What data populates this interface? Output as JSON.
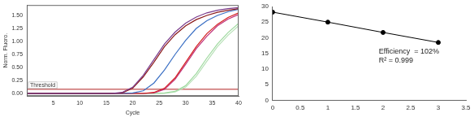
{
  "chart_data": [
    {
      "type": "line",
      "x_label": "Cycle",
      "y_label": "Norm. Fluoro.",
      "x": [
        0,
        2,
        4,
        6,
        8,
        10,
        12,
        14,
        16,
        18,
        20,
        22,
        24,
        26,
        28,
        30,
        32,
        34,
        36,
        38,
        40
      ],
      "series": [
        {
          "color": "#7a3b8c",
          "values": [
            0,
            0,
            0,
            0,
            0,
            0,
            0,
            0,
            0,
            0.02,
            0.12,
            0.35,
            0.65,
            0.95,
            1.18,
            1.35,
            1.47,
            1.55,
            1.6,
            1.63,
            1.65
          ]
        },
        {
          "color": "#8b1a1a",
          "values": [
            0,
            0,
            0,
            0,
            0,
            0,
            0,
            0,
            0,
            0.01,
            0.1,
            0.32,
            0.6,
            0.9,
            1.13,
            1.3,
            1.42,
            1.5,
            1.56,
            1.6,
            1.63
          ]
        },
        {
          "color": "#3a6fc4",
          "values": [
            0,
            0,
            0,
            0,
            0,
            0,
            0,
            0,
            0,
            0,
            0.01,
            0.05,
            0.2,
            0.45,
            0.75,
            1.02,
            1.25,
            1.4,
            1.5,
            1.57,
            1.62
          ]
        },
        {
          "color": "#d42020",
          "values": [
            0,
            0,
            0,
            0,
            0,
            0,
            0,
            0,
            0,
            0,
            0,
            0,
            0.02,
            0.1,
            0.3,
            0.6,
            0.9,
            1.15,
            1.33,
            1.46,
            1.55
          ]
        },
        {
          "color": "#c0307a",
          "values": [
            0,
            0,
            0,
            0,
            0,
            0,
            0,
            0,
            0,
            0,
            0,
            0,
            0.01,
            0.08,
            0.27,
            0.56,
            0.86,
            1.1,
            1.3,
            1.43,
            1.52
          ]
        },
        {
          "color": "#9ed99e",
          "values": [
            0,
            0,
            0,
            0,
            0,
            0,
            0,
            0,
            0,
            0,
            0,
            0,
            0,
            0.01,
            0.04,
            0.15,
            0.38,
            0.68,
            0.95,
            1.17,
            1.35
          ]
        },
        {
          "color": "#b8e0b8",
          "values": [
            0,
            0,
            0,
            0,
            0,
            0,
            0,
            0,
            0,
            0,
            0,
            0,
            0,
            0,
            0.03,
            0.12,
            0.33,
            0.62,
            0.9,
            1.12,
            1.3
          ]
        }
      ],
      "threshold": {
        "value": 0.08,
        "label": "Threshold",
        "color": "#b22222"
      },
      "marker": "none",
      "xlim": [
        0,
        40
      ],
      "xticks": [
        5,
        10,
        15,
        20,
        25,
        30,
        35,
        40
      ],
      "ylim": [
        -0.05,
        1.7
      ],
      "yticks": [
        {
          "value": 0,
          "label": "0.00"
        },
        {
          "value": 0.25,
          "label": "0.25"
        },
        {
          "value": 0.5,
          "label": "0.50"
        },
        {
          "value": 0.75,
          "label": "0.75"
        },
        {
          "value": 1,
          "label": "1.00"
        },
        {
          "value": 1.25,
          "label": "1.25"
        },
        {
          "value": 1.5,
          "label": "1.50"
        }
      ],
      "grid": false
    },
    {
      "type": "line",
      "x": [
        0,
        1,
        2,
        3
      ],
      "series": [
        {
          "color": "#000000",
          "values": [
            28.2,
            25,
            21.7,
            18.5
          ]
        }
      ],
      "marker": "circle",
      "annotations": [
        "Efficiency  = 102%",
        "R² = 0.999"
      ],
      "xlim": [
        0,
        3.5
      ],
      "xticks": [
        0,
        0.5,
        1,
        1.5,
        2,
        2.5,
        3,
        3.5
      ],
      "ylim": [
        0,
        30
      ],
      "yticks": [
        0,
        5,
        10,
        15,
        20,
        25,
        30
      ],
      "grid": false
    }
  ]
}
